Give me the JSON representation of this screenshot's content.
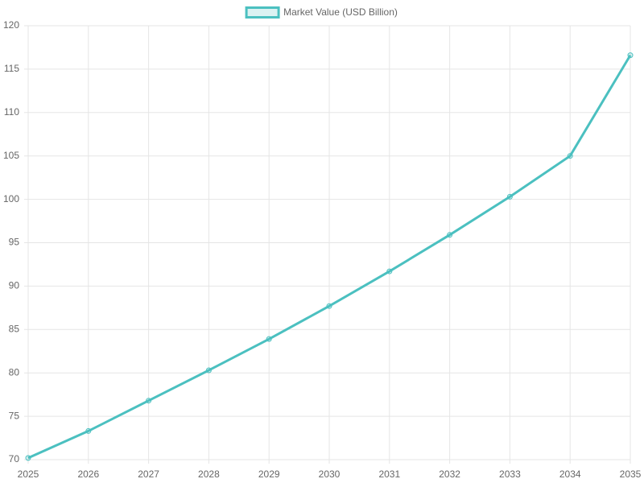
{
  "chart_data": {
    "type": "line",
    "categories": [
      "2025",
      "2026",
      "2027",
      "2028",
      "2029",
      "2030",
      "2031",
      "2032",
      "2033",
      "2034",
      "2035"
    ],
    "series": [
      {
        "name": "Market Value (USD Billion)",
        "color": "#4bc0c0",
        "fill": "rgba(75,192,192,0.2)",
        "values": [
          70.2,
          73.3,
          76.8,
          80.3,
          83.9,
          87.7,
          91.7,
          95.9,
          100.3,
          105.0,
          116.6
        ]
      }
    ],
    "ylim": [
      70,
      120
    ],
    "yticks": [
      70,
      75,
      80,
      85,
      90,
      95,
      100,
      105,
      110,
      115,
      120
    ],
    "grid": true,
    "legend": "top"
  }
}
